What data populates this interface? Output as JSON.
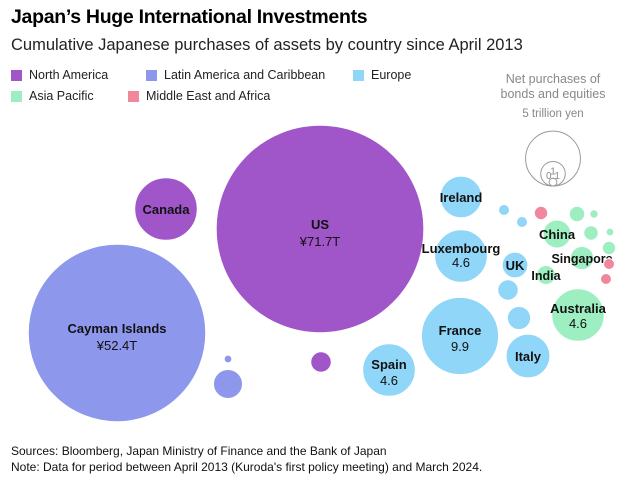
{
  "header": {
    "title": "Japan’s Huge International Investments",
    "subtitle": "Cumulative Japanese purchases of assets by country since April 2013"
  },
  "colors": {
    "North America": "#a055c8",
    "Latin America and Caribbean": "#8d98ec",
    "Europe": "#8fd6f8",
    "Asia Pacific": "#9deec1",
    "Middle East and Africa": "#f1879c"
  },
  "chart_data": {
    "type": "bubble",
    "title": "Japan’s Huge International Investments",
    "subtitle": "Cumulative Japanese purchases of assets by country since April 2013",
    "unit": "trillion yen",
    "legend": [
      {
        "name": "North America",
        "color": "#a055c8"
      },
      {
        "name": "Latin America and Caribbean",
        "color": "#8d98ec"
      },
      {
        "name": "Europe",
        "color": "#8fd6f8"
      },
      {
        "name": "Asia Pacific",
        "color": "#9deec1"
      },
      {
        "name": "Middle East and Africa",
        "color": "#f1879c"
      }
    ],
    "size_key": {
      "title_line1": "Net purchases of",
      "title_line2": "bonds and equities",
      "reference_label": "5 trillion yen",
      "rings": [
        {
          "value": 5,
          "label": ""
        },
        {
          "value": 1,
          "label": "1"
        },
        {
          "value": 0.1,
          "label": "0.1"
        }
      ]
    },
    "bubbles": [
      {
        "name": "US",
        "label": "US",
        "value_label": "¥71.7T",
        "value": 71.7,
        "region": "North America"
      },
      {
        "name": "Cayman Islands",
        "label": "Cayman Islands",
        "value_label": "¥52.4T",
        "value": 52.4,
        "region": "Latin America and Caribbean"
      },
      {
        "name": "Canada",
        "label": "Canada",
        "value_label": "",
        "value": 6.5,
        "region": "North America"
      },
      {
        "name": "North America (other)",
        "label": "",
        "value_label": "",
        "value": 0.7,
        "region": "North America"
      },
      {
        "name": "Latin America (other 1)",
        "label": "",
        "value_label": "",
        "value": 1.4,
        "region": "Latin America and Caribbean"
      },
      {
        "name": "Latin America (other 2)",
        "label": "",
        "value_label": "",
        "value": 0.1,
        "region": "Latin America and Caribbean"
      },
      {
        "name": "Ireland",
        "label": "Ireland",
        "value_label": "",
        "value": 2.9,
        "region": "Europe"
      },
      {
        "name": "Luxembourg",
        "label": "Luxembourg",
        "value_label": "4.6",
        "value": 4.6,
        "region": "Europe"
      },
      {
        "name": "UK",
        "label": "UK",
        "value_label": "",
        "value": 1.1,
        "region": "Europe"
      },
      {
        "name": "France",
        "label": "France",
        "value_label": "9.9",
        "value": 9.9,
        "region": "Europe"
      },
      {
        "name": "Spain",
        "label": "Spain",
        "value_label": "4.6",
        "value": 4.6,
        "region": "Europe"
      },
      {
        "name": "Italy",
        "label": "Italy",
        "value_label": "",
        "value": 3.2,
        "region": "Europe"
      },
      {
        "name": "Europe (other 1)",
        "label": "",
        "value_label": "",
        "value": 0.7,
        "region": "Europe"
      },
      {
        "name": "Europe (other 2)",
        "label": "",
        "value_label": "",
        "value": 0.9,
        "region": "Europe"
      },
      {
        "name": "Europe (other 3)",
        "label": "",
        "value_label": "",
        "value": 0.2,
        "region": "Europe"
      },
      {
        "name": "Europe (other 4)",
        "label": "",
        "value_label": "",
        "value": 0.2,
        "region": "Europe"
      },
      {
        "name": "Australia",
        "label": "Australia",
        "value_label": "4.6",
        "value": 4.6,
        "region": "Asia Pacific"
      },
      {
        "name": "China",
        "label": "China",
        "value_label": "",
        "value": 1.3,
        "region": "Asia Pacific"
      },
      {
        "name": "Singapore",
        "label": "Singapore",
        "value_label": "",
        "value": 0.9,
        "region": "Asia Pacific"
      },
      {
        "name": "India",
        "label": "India",
        "value_label": "",
        "value": 0.6,
        "region": "Asia Pacific"
      },
      {
        "name": "Asia Pacific (other 1)",
        "label": "",
        "value_label": "",
        "value": 0.4,
        "region": "Asia Pacific"
      },
      {
        "name": "Asia Pacific (other 2)",
        "label": "",
        "value_label": "",
        "value": 0.35,
        "region": "Asia Pacific"
      },
      {
        "name": "Asia Pacific (other 3)",
        "label": "",
        "value_label": "",
        "value": 0.3,
        "region": "Asia Pacific"
      },
      {
        "name": "Asia Pacific (other 4)",
        "label": "",
        "value_label": "",
        "value": 0.12,
        "region": "Asia Pacific"
      },
      {
        "name": "Asia Pacific (other 5)",
        "label": "",
        "value_label": "",
        "value": 0.1,
        "region": "Asia Pacific"
      },
      {
        "name": "Middle East and Africa (1)",
        "label": "",
        "value_label": "",
        "value": 0.3,
        "region": "Middle East and Africa"
      },
      {
        "name": "Middle East and Africa (2)",
        "label": "",
        "value_label": "",
        "value": 0.2,
        "region": "Middle East and Africa"
      },
      {
        "name": "Middle East and Africa (3)",
        "label": "",
        "value_label": "",
        "value": 0.2,
        "region": "Middle East and Africa"
      }
    ]
  },
  "footer": {
    "sources": "Sources: Bloomberg, Japan Ministry of Finance and the Bank of Japan",
    "note": "Note: Data for period between April 2013 (Kuroda's first policy meeting) and March 2024."
  }
}
